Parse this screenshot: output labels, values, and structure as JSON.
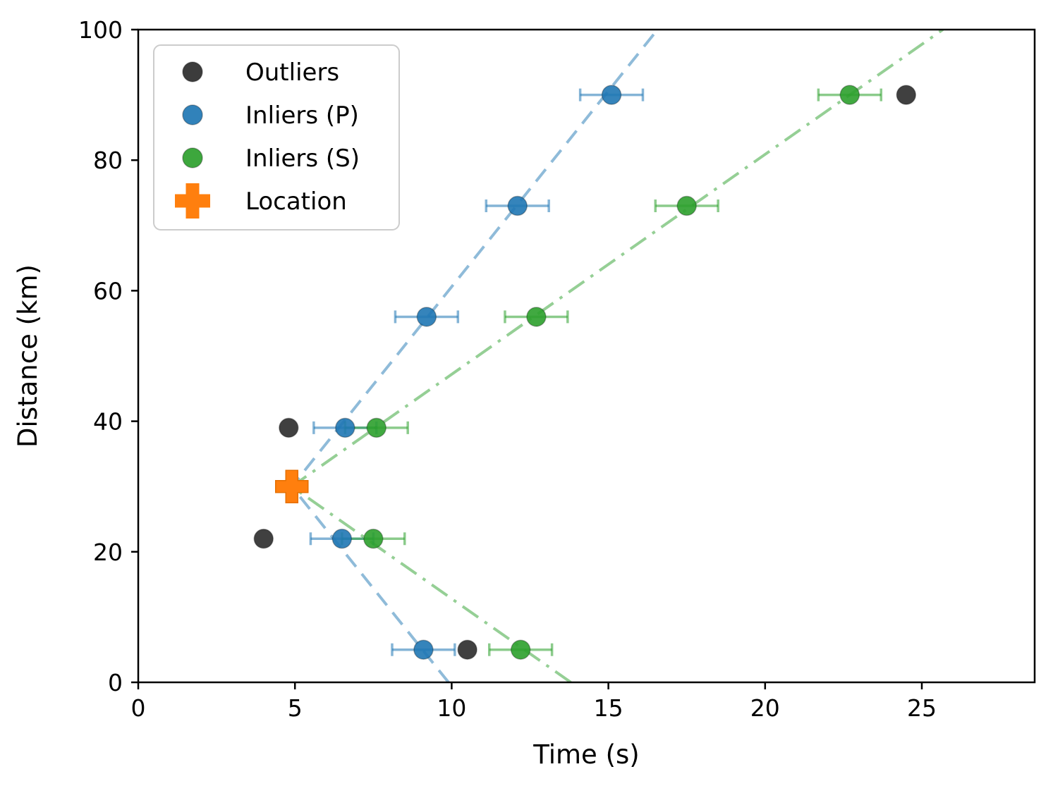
{
  "chart_data": {
    "type": "scatter",
    "title": "",
    "xlabel": "Time (s)",
    "ylabel": "Distance (km)",
    "xlim": [
      0,
      28.6
    ],
    "ylim": [
      0,
      100
    ],
    "xticks": [
      0,
      5,
      10,
      15,
      20,
      25
    ],
    "yticks": [
      0,
      20,
      40,
      60,
      80,
      100
    ],
    "grid": false,
    "legend_position": "upper-left",
    "legend_entries": [
      {
        "label": "Outliers",
        "marker": "circle",
        "color": "#2b2b2b"
      },
      {
        "label": "Inliers (P)",
        "marker": "circle",
        "color": "#1f77b4"
      },
      {
        "label": "Inliers (S)",
        "marker": "circle",
        "color": "#2ca02c"
      },
      {
        "label": "Location",
        "marker": "plus",
        "color": "#ff7f0e"
      }
    ],
    "series": [
      {
        "name": "Outliers",
        "marker": "circle",
        "color": "#2b2b2b",
        "xerr": 0,
        "points": [
          {
            "x": 4.8,
            "y": 39
          },
          {
            "x": 4.0,
            "y": 22
          },
          {
            "x": 10.5,
            "y": 5
          },
          {
            "x": 24.5,
            "y": 90
          }
        ]
      },
      {
        "name": "Inliers (P)",
        "marker": "circle",
        "color": "#1f77b4",
        "xerr": 1.0,
        "points": [
          {
            "x": 15.1,
            "y": 90
          },
          {
            "x": 12.1,
            "y": 73
          },
          {
            "x": 9.2,
            "y": 56
          },
          {
            "x": 6.6,
            "y": 39
          },
          {
            "x": 6.5,
            "y": 22
          },
          {
            "x": 9.1,
            "y": 5
          }
        ]
      },
      {
        "name": "Inliers (S)",
        "marker": "circle",
        "color": "#2ca02c",
        "xerr": 1.0,
        "points": [
          {
            "x": 22.7,
            "y": 90
          },
          {
            "x": 17.5,
            "y": 73
          },
          {
            "x": 12.7,
            "y": 56
          },
          {
            "x": 7.6,
            "y": 39
          },
          {
            "x": 7.5,
            "y": 22
          },
          {
            "x": 12.2,
            "y": 5
          }
        ]
      },
      {
        "name": "Location",
        "marker": "plus",
        "color": "#ff7f0e",
        "xerr": 0,
        "points": [
          {
            "x": 4.9,
            "y": 30
          }
        ]
      }
    ],
    "fit_lines": [
      {
        "name": "P-wave fit",
        "color": "#1f77b4",
        "opacity": 0.5,
        "style": "dashed",
        "origin_time": 4.9,
        "origin_distance": 30,
        "velocity_km_s": 6.0
      },
      {
        "name": "S-wave fit",
        "color": "#2ca02c",
        "opacity": 0.5,
        "style": "dashdot",
        "origin_time": 4.9,
        "origin_distance": 30,
        "velocity_km_s": 3.37
      }
    ]
  }
}
